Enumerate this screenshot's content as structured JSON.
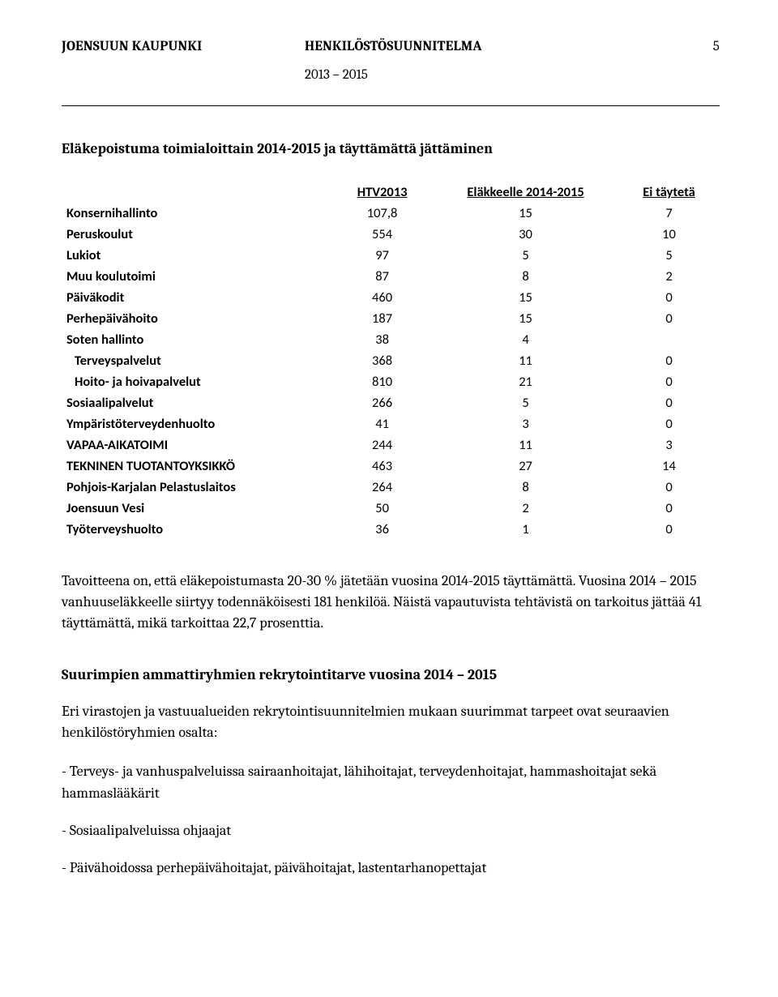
{
  "header": {
    "left": "JOENSUUN KAUPUNKI",
    "center": "HENKILÖSTÖSUUNNITELMA",
    "page_number": "5",
    "subtitle": "2013 – 2015"
  },
  "section1": {
    "title": "Eläkepoistuma toimialoittain 2014-2015 ja täyttämättä jättäminen"
  },
  "table": {
    "columns": [
      "",
      "HTV2013",
      "Eläkkeelle 2014-2015",
      "Ei täytetä"
    ],
    "rows": [
      {
        "label": "Konsernihallinto",
        "indent": false,
        "htv": "107,8",
        "elak": "15",
        "ei": "7"
      },
      {
        "label": "Peruskoulut",
        "indent": false,
        "htv": "554",
        "elak": "30",
        "ei": "10"
      },
      {
        "label": "Lukiot",
        "indent": false,
        "htv": "97",
        "elak": "5",
        "ei": "5"
      },
      {
        "label": "Muu koulutoimi",
        "indent": false,
        "htv": "87",
        "elak": "8",
        "ei": "2"
      },
      {
        "label": "Päiväkodit",
        "indent": false,
        "htv": "460",
        "elak": "15",
        "ei": "0"
      },
      {
        "label": "Perhepäivähoito",
        "indent": false,
        "htv": "187",
        "elak": "15",
        "ei": "0"
      },
      {
        "label": "Soten hallinto",
        "indent": false,
        "htv": "38",
        "elak": "4",
        "ei": ""
      },
      {
        "label": "Terveyspalvelut",
        "indent": true,
        "htv": "368",
        "elak": "11",
        "ei": "0"
      },
      {
        "label": "Hoito- ja hoivapalvelut",
        "indent": true,
        "htv": "810",
        "elak": "21",
        "ei": "0"
      },
      {
        "label": "Sosiaalipalvelut",
        "indent": false,
        "htv": "266",
        "elak": "5",
        "ei": "0"
      },
      {
        "label": "Ympäristöterveydenhuolto",
        "indent": false,
        "htv": "41",
        "elak": "3",
        "ei": "0"
      },
      {
        "label": "VAPAA-AIKATOIMI",
        "indent": false,
        "htv": "244",
        "elak": "11",
        "ei": "3"
      },
      {
        "label": "TEKNINEN TUOTANTOYKSIKKÖ",
        "indent": false,
        "htv": "463",
        "elak": "27",
        "ei": "14"
      },
      {
        "label": "Pohjois-Karjalan Pelastuslaitos",
        "indent": false,
        "htv": "264",
        "elak": "8",
        "ei": "0"
      },
      {
        "label": "Joensuun Vesi",
        "indent": false,
        "htv": "50",
        "elak": "2",
        "ei": "0"
      },
      {
        "label": "Työterveyshuolto",
        "indent": false,
        "htv": "36",
        "elak": "1",
        "ei": "0"
      }
    ]
  },
  "paragraph1": "Tavoitteena on, että eläkepoistumasta 20-30 % jätetään vuosina 2014-2015 täyttämättä. Vuosina 2014 – 2015 vanhuuseläkkeelle siirtyy todennäköisesti 181 henkilöä. Näistä vapautuvista tehtävistä on tarkoitus jättää 41 täyttämättä, mikä tarkoittaa 22,7 prosenttia.",
  "section2": {
    "title": "Suurimpien ammattiryhmien rekrytointitarve vuosina 2014 – 2015",
    "intro": "Eri virastojen ja vastuualueiden rekrytointisuunnitelmien mukaan suurimmat tarpeet ovat seuraavien henkilöstöryhmien osalta:",
    "bullets": [
      "- Terveys- ja vanhuspalveluissa sairaanhoitajat, lähihoitajat, terveydenhoitajat, hammashoitajat sekä hammaslääkärit",
      "- Sosiaalipalveluissa ohjaajat",
      "- Päivähoidossa perhepäivähoitajat, päivähoitajat, lastentarhanopettajat"
    ]
  }
}
